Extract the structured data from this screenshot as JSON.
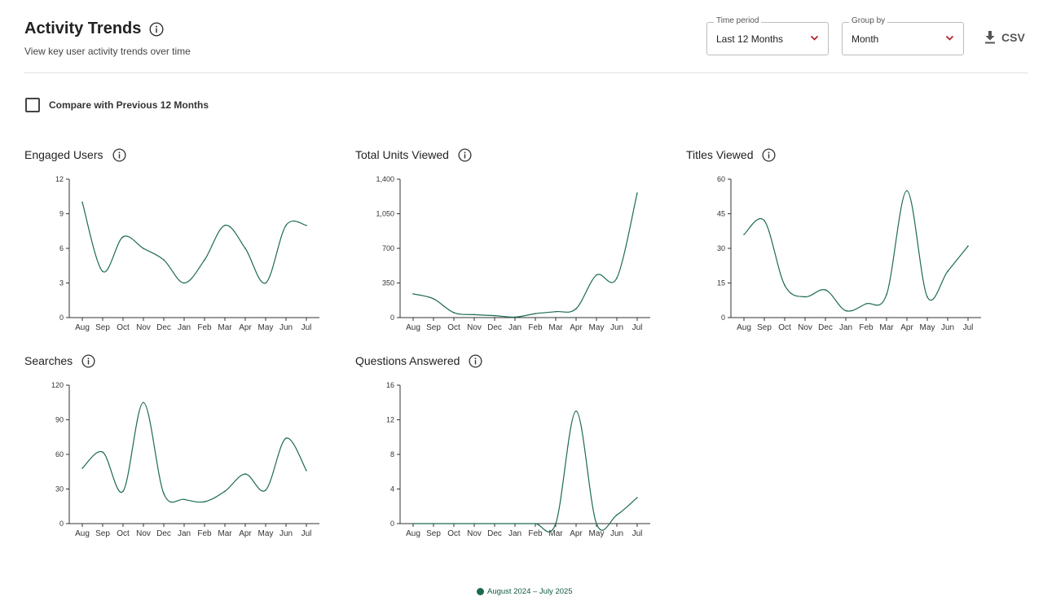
{
  "header": {
    "title": "Activity Trends",
    "subtitle": "View key user activity trends over time"
  },
  "filters": {
    "time_period_label": "Time period",
    "time_period_value": "Last 12 Months",
    "group_by_label": "Group by",
    "group_by_value": "Month",
    "csv_label": "CSV"
  },
  "compare": {
    "label": "Compare with Previous 12 Months",
    "checked": false
  },
  "colors": {
    "series": "#1d6b4f",
    "axis": "#333333",
    "legend_dot": "#1a6b4d"
  },
  "legend": {
    "label": "August 2024 – July 2025"
  },
  "chart_data": [
    {
      "type": "line",
      "title": "Engaged Users",
      "categories": [
        "Aug",
        "Sep",
        "Oct",
        "Nov",
        "Dec",
        "Jan",
        "Feb",
        "Mar",
        "Apr",
        "May",
        "Jun",
        "Jul"
      ],
      "y_ticks": [
        "0",
        "3",
        "6",
        "9",
        "12"
      ],
      "ylim": [
        0,
        12
      ],
      "series": [
        {
          "values": [
            10,
            4,
            7,
            6,
            5,
            3,
            5,
            8,
            6,
            3,
            8,
            8
          ]
        }
      ]
    },
    {
      "type": "line",
      "title": "Total Units Viewed",
      "categories": [
        "Aug",
        "Sep",
        "Oct",
        "Nov",
        "Dec",
        "Jan",
        "Feb",
        "Mar",
        "Apr",
        "May",
        "Jun",
        "Jul"
      ],
      "y_ticks": [
        "0",
        "350",
        "700",
        "1,050",
        "1,400"
      ],
      "ylim": [
        0,
        1400
      ],
      "series": [
        {
          "values": [
            240,
            190,
            50,
            30,
            20,
            5,
            40,
            60,
            90,
            430,
            400,
            1260
          ]
        }
      ]
    },
    {
      "type": "line",
      "title": "Titles Viewed",
      "categories": [
        "Aug",
        "Sep",
        "Oct",
        "Nov",
        "Dec",
        "Jan",
        "Feb",
        "Mar",
        "Apr",
        "May",
        "Jun",
        "Jul"
      ],
      "y_ticks": [
        "0",
        "15",
        "30",
        "45",
        "60"
      ],
      "ylim": [
        0,
        60
      ],
      "series": [
        {
          "values": [
            36,
            42,
            14,
            9,
            12,
            3,
            6,
            10,
            55,
            9,
            20,
            31
          ]
        }
      ]
    },
    {
      "type": "line",
      "title": "Searches",
      "categories": [
        "Aug",
        "Sep",
        "Oct",
        "Nov",
        "Dec",
        "Jan",
        "Feb",
        "Mar",
        "Apr",
        "May",
        "Jun",
        "Jul"
      ],
      "y_ticks": [
        "0",
        "30",
        "60",
        "90",
        "120"
      ],
      "ylim": [
        0,
        120
      ],
      "series": [
        {
          "values": [
            48,
            62,
            28,
            105,
            26,
            21,
            19,
            28,
            43,
            29,
            74,
            46
          ]
        }
      ]
    },
    {
      "type": "line",
      "title": "Questions Answered",
      "categories": [
        "Aug",
        "Sep",
        "Oct",
        "Nov",
        "Dec",
        "Jan",
        "Feb",
        "Mar",
        "Apr",
        "May",
        "Jun",
        "Jul"
      ],
      "y_ticks": [
        "0",
        "4",
        "8",
        "12",
        "16"
      ],
      "ylim": [
        0,
        16
      ],
      "series": [
        {
          "values": [
            0,
            0,
            0,
            0,
            0,
            0,
            0,
            0,
            13,
            0,
            1,
            3
          ]
        }
      ]
    }
  ]
}
